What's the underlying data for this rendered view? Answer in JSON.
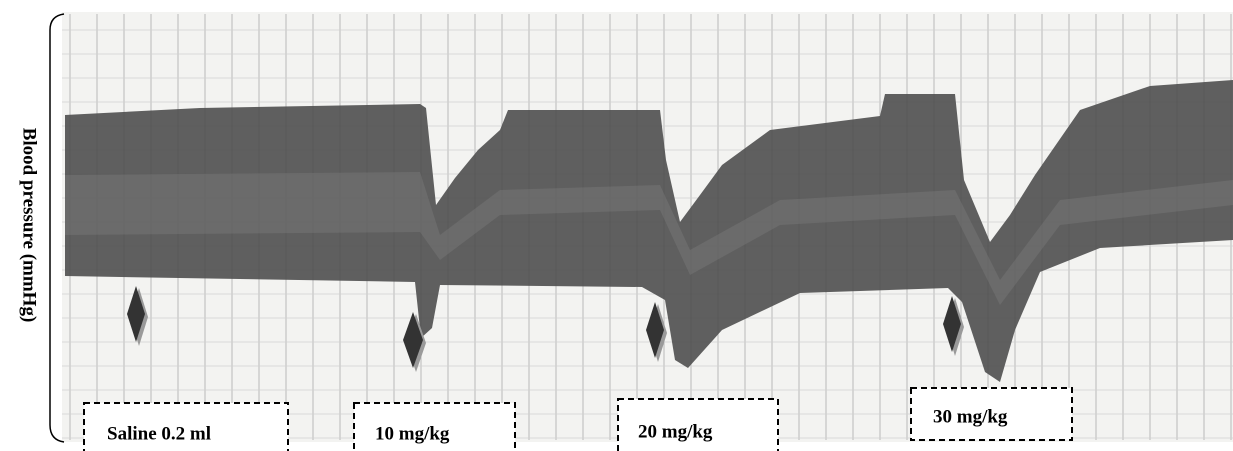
{
  "y_axis_label": "Blood pressure (mmHg)",
  "annotations": [
    "Saline 0.2 ml",
    "10 mg/kg",
    "20 mg/kg",
    "30 mg/kg"
  ]
}
